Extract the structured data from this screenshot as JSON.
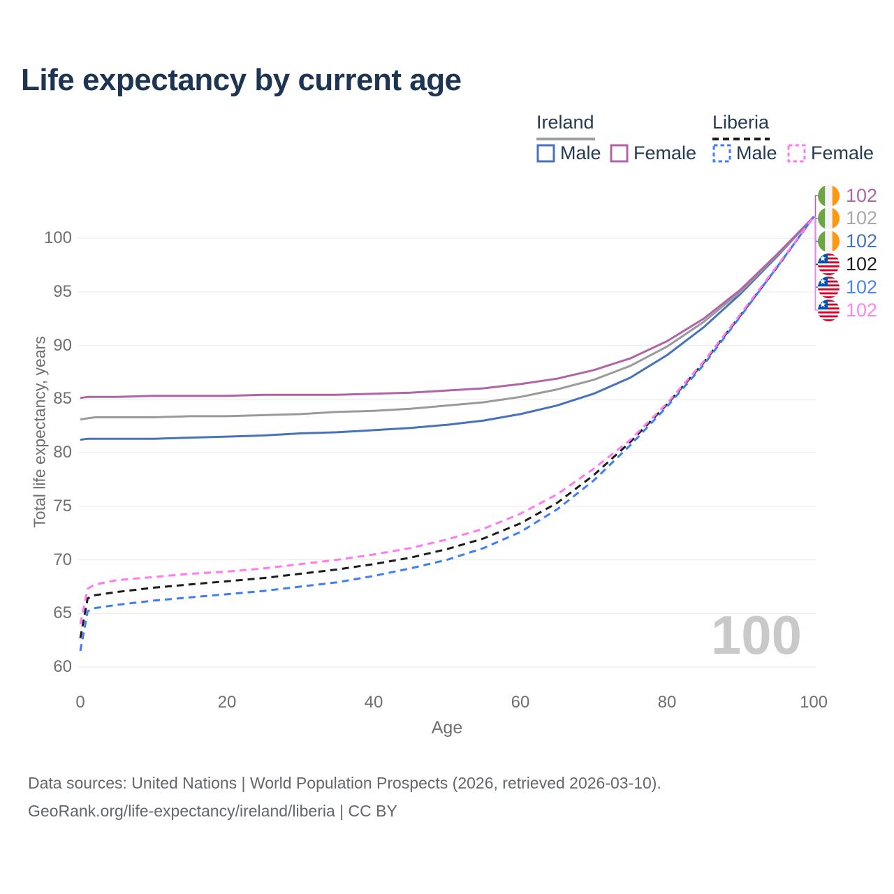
{
  "title": "Life expectancy by current age",
  "legend": {
    "groups": [
      {
        "country": "Ireland",
        "line_style": "solid",
        "underline_color": "#9e9e9e",
        "items": [
          {
            "label": "Male",
            "color": "#4673bc",
            "dashed": false
          },
          {
            "label": "Female",
            "color": "#b164a8",
            "dashed": false
          }
        ]
      },
      {
        "country": "Liberia",
        "line_style": "dashed",
        "underline_color": "#1c1c1c",
        "items": [
          {
            "label": "Male",
            "color": "#3f7df6",
            "dashed": true
          },
          {
            "label": "Female",
            "color": "#ff7af2",
            "dashed": true
          }
        ]
      }
    ]
  },
  "chart_data": {
    "type": "line",
    "title": "Life expectancy by current age",
    "xlabel": "Age",
    "ylabel": "Total life expectancy, years",
    "x_ticks": [
      0,
      20,
      40,
      60,
      80,
      100
    ],
    "y_ticks": [
      60,
      65,
      70,
      75,
      80,
      85,
      90,
      95,
      100
    ],
    "xlim": [
      0,
      100
    ],
    "ylim": [
      59.5,
      103
    ],
    "grid": true,
    "x": [
      0,
      1,
      2,
      5,
      10,
      15,
      20,
      25,
      30,
      35,
      40,
      45,
      50,
      55,
      60,
      65,
      70,
      75,
      80,
      85,
      90,
      95,
      100
    ],
    "series": [
      {
        "name": "Ireland Male",
        "country": "Ireland",
        "color": "#4673bc",
        "dashed": false,
        "row": 2,
        "values": [
          81.2,
          81.3,
          81.3,
          81.3,
          81.3,
          81.4,
          81.5,
          81.6,
          81.8,
          81.9,
          82.1,
          82.3,
          82.6,
          83.0,
          83.6,
          84.4,
          85.5,
          87.0,
          89.1,
          91.7,
          94.8,
          98.3,
          102
        ]
      },
      {
        "name": "Ireland",
        "country": "Ireland",
        "color": "#9a9a9a",
        "dashed": false,
        "row": 1,
        "values": [
          83.1,
          83.2,
          83.3,
          83.3,
          83.3,
          83.4,
          83.4,
          83.5,
          83.6,
          83.8,
          83.9,
          84.1,
          84.4,
          84.7,
          85.2,
          85.9,
          86.8,
          88.1,
          89.9,
          92.2,
          95.0,
          98.4,
          102
        ]
      },
      {
        "name": "Ireland Female",
        "country": "Ireland",
        "color": "#b164a8",
        "dashed": false,
        "row": 0,
        "values": [
          85.1,
          85.2,
          85.2,
          85.2,
          85.3,
          85.3,
          85.3,
          85.4,
          85.4,
          85.4,
          85.5,
          85.6,
          85.8,
          86.0,
          86.4,
          86.9,
          87.7,
          88.8,
          90.4,
          92.5,
          95.2,
          98.5,
          102
        ]
      },
      {
        "name": "Liberia",
        "country": "Liberia",
        "color": "#1c1c1c",
        "dashed": true,
        "row": 3,
        "values": [
          62.7,
          66.4,
          66.7,
          67.0,
          67.4,
          67.7,
          68.0,
          68.3,
          68.7,
          69.1,
          69.6,
          70.2,
          71.0,
          72.0,
          73.4,
          75.3,
          77.9,
          81.0,
          84.5,
          88.4,
          92.8,
          97.3,
          102
        ]
      },
      {
        "name": "Liberia Male",
        "country": "Liberia",
        "color": "#3f7df6",
        "dashed": true,
        "row": 4,
        "values": [
          61.5,
          65.2,
          65.5,
          65.8,
          66.2,
          66.5,
          66.8,
          67.1,
          67.5,
          67.9,
          68.5,
          69.2,
          70.0,
          71.1,
          72.6,
          74.7,
          77.4,
          80.7,
          84.3,
          88.2,
          92.7,
          97.3,
          102
        ]
      },
      {
        "name": "Liberia Female",
        "country": "Liberia",
        "color": "#ff7af2",
        "dashed": true,
        "row": 5,
        "values": [
          64.0,
          67.3,
          67.7,
          68.1,
          68.4,
          68.7,
          68.9,
          69.2,
          69.6,
          70.0,
          70.5,
          71.1,
          71.9,
          72.9,
          74.3,
          76.1,
          78.5,
          81.2,
          84.6,
          88.5,
          92.9,
          97.4,
          102
        ]
      }
    ],
    "end_labels": [
      {
        "flag": "ireland",
        "series": "Ireland Female",
        "value": "102",
        "color": "#b164a8"
      },
      {
        "flag": "ireland",
        "series": "Ireland",
        "value": "102",
        "color": "#a9a9a9"
      },
      {
        "flag": "ireland",
        "series": "Ireland Male",
        "value": "102",
        "color": "#4673bc"
      },
      {
        "flag": "liberia",
        "series": "Liberia",
        "value": "102",
        "color": "#1c1c1c"
      },
      {
        "flag": "liberia",
        "series": "Liberia Male",
        "value": "102",
        "color": "#4b86f0"
      },
      {
        "flag": "liberia",
        "series": "Liberia Female",
        "value": "102",
        "color": "#ff85f0"
      }
    ]
  },
  "watermark": "100",
  "footer": {
    "line1": "Data sources: United Nations | World Population Prospects (2026, retrieved 2026-03-10).",
    "line2": "GeoRank.org/life-expectancy/ireland/liberia | CC BY"
  },
  "colors": {
    "title_text": "#1d3553",
    "legend_text": "#243b53",
    "axis_text": "#6f6f6f",
    "grid": "#e9e9e9",
    "watermark": "#c9c9c9",
    "footer_text": "#63676c",
    "ireland_flag": [
      "#6da544",
      "#f4f4f4",
      "#ff9811"
    ],
    "liberia_flag": [
      "#d80027",
      "#f4f4f4",
      "#0052b4"
    ]
  }
}
